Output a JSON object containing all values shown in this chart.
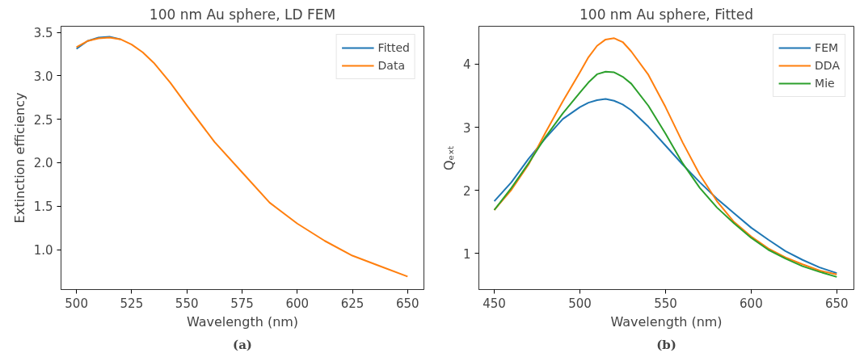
{
  "chart_data": [
    {
      "type": "line",
      "title": "100 nm Au sphere, LD FEM",
      "xlabel": "Wavelength (nm)",
      "ylabel": "Extinction efficiency",
      "xlim": [
        493,
        657.4
      ],
      "ylim": [
        0.54,
        3.57
      ],
      "xticks": [
        500,
        525,
        550,
        575,
        600,
        625,
        650
      ],
      "yticks": [
        {
          "value": 1.0,
          "label": "1.0"
        },
        {
          "value": 1.5,
          "label": "1.5"
        },
        {
          "value": 2.0,
          "label": "2.0"
        },
        {
          "value": 2.5,
          "label": "2.5"
        },
        {
          "value": 3.0,
          "label": "3.0"
        },
        {
          "value": 3.5,
          "label": "3.5"
        }
      ],
      "grid": false,
      "legend": "top right",
      "annotations": [
        "(a)"
      ],
      "x": [
        500,
        505,
        510,
        515,
        520,
        525,
        530,
        535,
        542.5,
        550,
        562.5,
        575,
        587.5,
        600,
        612.5,
        625,
        637.5,
        650
      ],
      "series": [
        {
          "name": "Fitted",
          "color": "#1f77b4",
          "values": [
            3.31,
            3.4,
            3.44,
            3.45,
            3.42,
            null,
            null,
            null,
            null,
            null,
            null,
            null,
            null,
            null,
            null,
            null,
            null,
            null
          ]
        },
        {
          "name": "Data",
          "color": "#ff7f0e",
          "values": [
            3.33,
            3.4,
            3.43,
            3.44,
            3.42,
            3.36,
            3.27,
            3.15,
            2.92,
            2.66,
            2.24,
            1.89,
            1.54,
            1.3,
            1.1,
            0.93,
            0.81,
            0.69
          ]
        }
      ]
    },
    {
      "type": "line",
      "title": "100 nm Au sphere, Fitted",
      "xlabel": "Wavelength (nm)",
      "ylabel": "Qₑₓₜ",
      "xlim": [
        441,
        660
      ],
      "ylim": [
        0.43,
        4.6
      ],
      "xticks": [
        450,
        500,
        550,
        600,
        650
      ],
      "yticks": [
        1,
        2,
        3,
        4
      ],
      "grid": false,
      "legend": "top right",
      "annotations": [
        "(b)"
      ],
      "x": [
        450,
        460,
        470,
        480,
        490,
        500,
        505,
        510,
        515,
        520,
        525,
        530,
        540,
        550,
        560,
        570,
        580,
        590,
        600,
        610,
        620,
        630,
        640,
        650
      ],
      "series": [
        {
          "name": "FEM",
          "color": "#1f77b4",
          "values": [
            1.83,
            2.13,
            2.5,
            2.83,
            3.13,
            3.32,
            3.39,
            3.43,
            3.45,
            3.42,
            3.36,
            3.27,
            3.01,
            2.71,
            2.41,
            2.13,
            1.87,
            1.64,
            1.41,
            1.22,
            1.04,
            0.9,
            0.78,
            0.69
          ]
        },
        {
          "name": "DDA",
          "color": "#ff7f0e",
          "values": [
            1.69,
            2.01,
            2.41,
            2.92,
            3.41,
            3.87,
            4.11,
            4.29,
            4.39,
            4.41,
            4.35,
            4.2,
            3.83,
            3.32,
            2.76,
            2.25,
            1.83,
            1.5,
            1.27,
            1.08,
            0.94,
            0.83,
            0.73,
            0.67
          ]
        },
        {
          "name": "Mie",
          "color": "#2ca02c",
          "values": [
            1.69,
            2.04,
            2.43,
            2.85,
            3.22,
            3.55,
            3.71,
            3.84,
            3.88,
            3.87,
            3.8,
            3.69,
            3.34,
            2.9,
            2.43,
            2.04,
            1.73,
            1.48,
            1.25,
            1.06,
            0.92,
            0.8,
            0.71,
            0.63
          ]
        }
      ]
    }
  ]
}
